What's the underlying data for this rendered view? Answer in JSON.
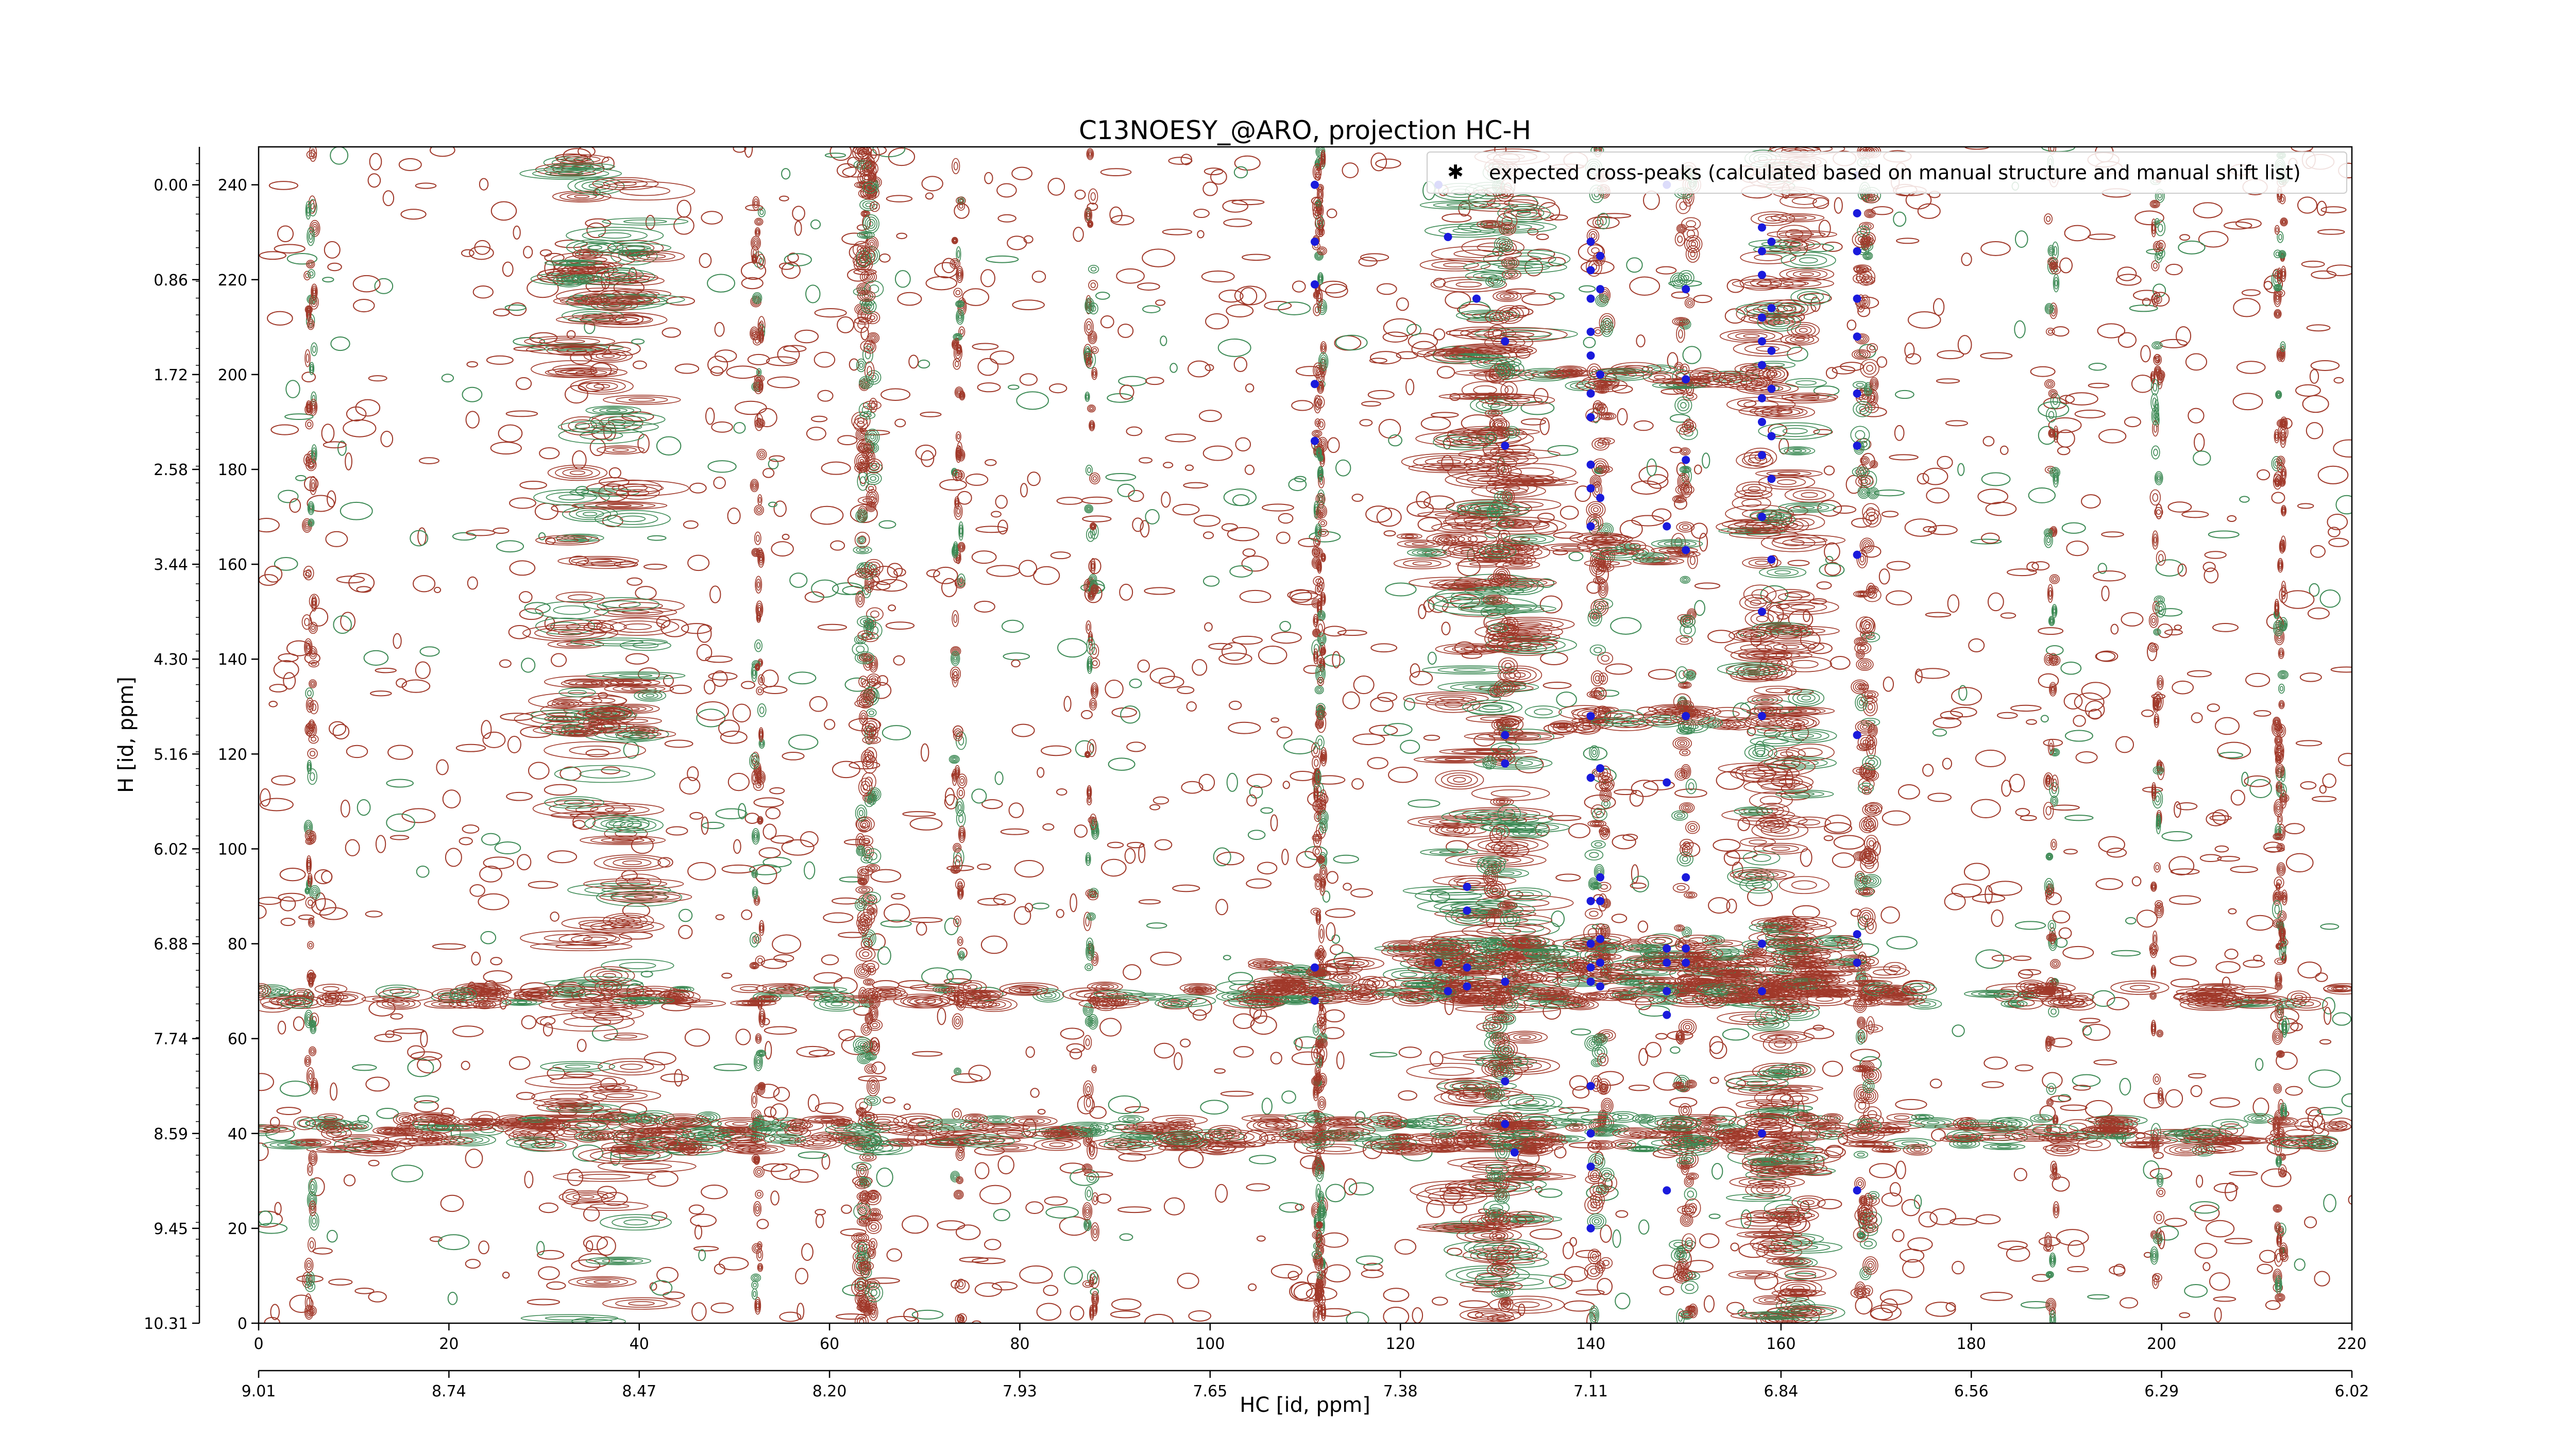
{
  "chart_data": {
    "type": "contour",
    "title": "C13NOESY_@ARO, projection HC-H",
    "xlabel": "HC [id, ppm]",
    "ylabel": "H [id, ppm]",
    "x_index_range": [
      0,
      220
    ],
    "y_index_range": [
      0,
      248
    ],
    "x_index_ticks": [
      "0",
      "20",
      "40",
      "60",
      "80",
      "100",
      "120",
      "140",
      "160",
      "180",
      "200",
      "220"
    ],
    "x_ppm_ticks": [
      "9.01",
      "8.74",
      "8.47",
      "8.20",
      "7.93",
      "7.65",
      "7.38",
      "7.11",
      "6.84",
      "6.56",
      "6.29",
      "6.02"
    ],
    "y_index_ticks": [
      "0",
      "20",
      "40",
      "60",
      "80",
      "100",
      "120",
      "140",
      "160",
      "180",
      "200",
      "220",
      "240"
    ],
    "y_ppm_ticks": [
      "10.31",
      "9.45",
      "8.59",
      "7.74",
      "6.88",
      "6.02",
      "5.16",
      "4.30",
      "3.44",
      "2.58",
      "1.72",
      "0.86",
      "0.00"
    ],
    "colors": {
      "positive": "#a0392a",
      "negative": "#3d8a55",
      "peaks": "#1a1adc"
    },
    "legend": {
      "label": "expected cross-peaks (calculated based on manual structure and manual shift list)",
      "position": "top-right"
    },
    "expected_cross_peaks": [
      [
        111,
        240
      ],
      [
        111,
        228
      ],
      [
        111,
        219
      ],
      [
        111,
        198
      ],
      [
        111,
        186
      ],
      [
        111,
        75
      ],
      [
        111,
        68
      ],
      [
        124,
        240
      ],
      [
        125,
        229
      ],
      [
        128,
        216
      ],
      [
        124,
        76
      ],
      [
        125,
        70
      ],
      [
        127,
        87
      ],
      [
        127,
        75
      ],
      [
        127,
        71
      ],
      [
        127,
        92
      ],
      [
        131,
        207
      ],
      [
        131,
        185
      ],
      [
        131,
        124
      ],
      [
        131,
        118
      ],
      [
        131,
        51
      ],
      [
        131,
        42
      ],
      [
        131,
        72
      ],
      [
        132,
        36
      ],
      [
        140,
        228
      ],
      [
        140,
        222
      ],
      [
        140,
        216
      ],
      [
        140,
        209
      ],
      [
        140,
        204
      ],
      [
        140,
        196
      ],
      [
        140,
        191
      ],
      [
        140,
        181
      ],
      [
        140,
        176
      ],
      [
        140,
        168
      ],
      [
        140,
        128
      ],
      [
        140,
        115
      ],
      [
        140,
        89
      ],
      [
        140,
        80
      ],
      [
        140,
        75
      ],
      [
        140,
        72
      ],
      [
        140,
        50
      ],
      [
        140,
        40
      ],
      [
        140,
        33
      ],
      [
        140,
        20
      ],
      [
        141,
        225
      ],
      [
        141,
        218
      ],
      [
        141,
        200
      ],
      [
        141,
        174
      ],
      [
        141,
        117
      ],
      [
        141,
        94
      ],
      [
        141,
        89
      ],
      [
        141,
        81
      ],
      [
        141,
        76
      ],
      [
        141,
        71
      ],
      [
        148,
        240
      ],
      [
        148,
        168
      ],
      [
        148,
        114
      ],
      [
        148,
        79
      ],
      [
        148,
        76
      ],
      [
        148,
        70
      ],
      [
        148,
        65
      ],
      [
        148,
        28
      ],
      [
        150,
        218
      ],
      [
        150,
        199
      ],
      [
        150,
        182
      ],
      [
        150,
        163
      ],
      [
        150,
        128
      ],
      [
        150,
        94
      ],
      [
        150,
        79
      ],
      [
        150,
        76
      ],
      [
        158,
        231
      ],
      [
        158,
        226
      ],
      [
        158,
        221
      ],
      [
        158,
        212
      ],
      [
        158,
        207
      ],
      [
        158,
        202
      ],
      [
        158,
        195
      ],
      [
        158,
        190
      ],
      [
        158,
        183
      ],
      [
        158,
        170
      ],
      [
        158,
        150
      ],
      [
        158,
        128
      ],
      [
        158,
        80
      ],
      [
        158,
        40
      ],
      [
        158,
        70
      ],
      [
        159,
        228
      ],
      [
        159,
        214
      ],
      [
        159,
        205
      ],
      [
        159,
        197
      ],
      [
        159,
        187
      ],
      [
        159,
        178
      ],
      [
        159,
        161
      ],
      [
        168,
        242
      ],
      [
        168,
        234
      ],
      [
        168,
        226
      ],
      [
        168,
        216
      ],
      [
        168,
        208
      ],
      [
        168,
        196
      ],
      [
        168,
        185
      ],
      [
        168,
        162
      ],
      [
        168,
        124
      ],
      [
        168,
        82
      ],
      [
        168,
        76
      ],
      [
        168,
        28
      ]
    ]
  }
}
